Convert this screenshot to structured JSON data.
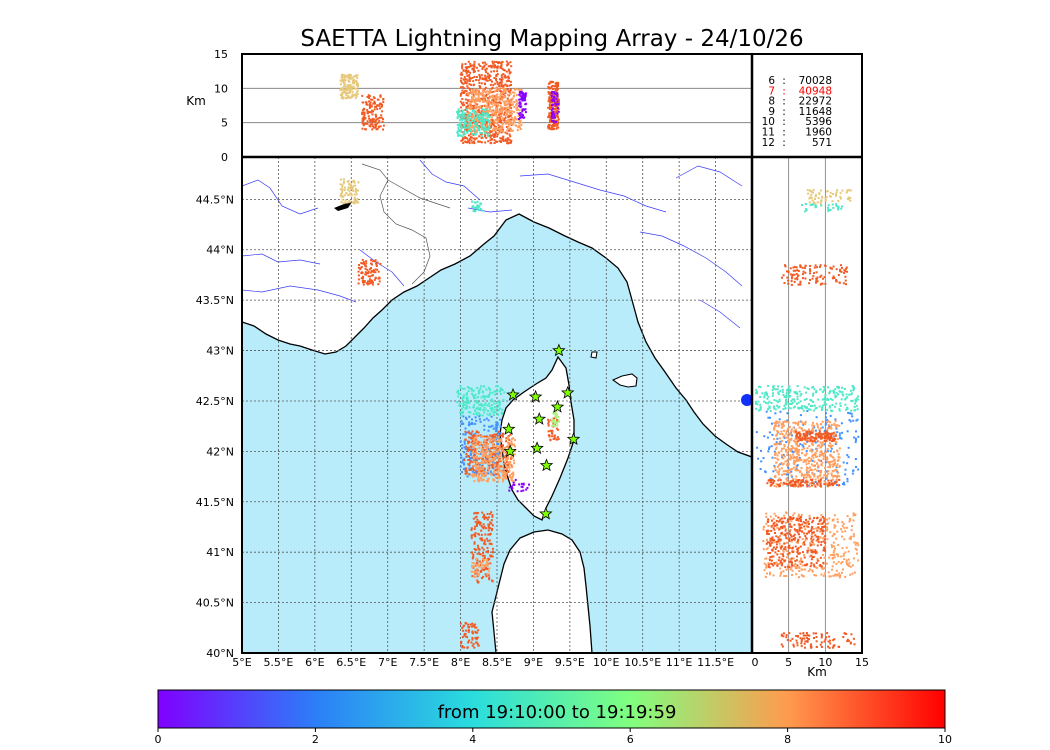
{
  "title": "SAETTA Lightning Mapping Array - 24/10/26",
  "colors": {
    "sea": "#b8ecfa",
    "land": "#ffffff",
    "coast": "#000000",
    "rivers": "#3a3aff",
    "borders": "#555555",
    "grid": "#555555",
    "station": "#7fff00",
    "highlight": "#ff0000"
  },
  "chart_data": [
    {
      "type": "scatter",
      "panel": "altitude-vs-longitude",
      "ylabel": "Km",
      "xlim": [
        5.0,
        12.0
      ],
      "ylim": [
        0,
        15
      ],
      "yticks": [
        "0",
        "5",
        "10",
        "15"
      ],
      "grid_lines_y": [
        5,
        10
      ],
      "clusters": [
        {
          "lon": [
            6.35,
            6.6
          ],
          "alt": [
            8.5,
            12.0
          ],
          "color": "#e6c97a",
          "n": 150
        },
        {
          "lon": [
            6.65,
            6.95
          ],
          "alt": [
            4.0,
            9.0
          ],
          "color": "#f25a24",
          "n": 140
        },
        {
          "lon": [
            8.0,
            8.7
          ],
          "alt": [
            2.0,
            14.0
          ],
          "color": "#f25a24",
          "n": 700
        },
        {
          "lon": [
            8.1,
            8.85
          ],
          "alt": [
            3.5,
            10.0
          ],
          "color": "#ffa060",
          "n": 400
        },
        {
          "lon": [
            7.95,
            8.4
          ],
          "alt": [
            3.0,
            7.0
          ],
          "color": "#4de8c8",
          "n": 180
        },
        {
          "lon": [
            8.8,
            8.9
          ],
          "alt": [
            5.5,
            9.5
          ],
          "color": "#8800ff",
          "n": 60
        },
        {
          "lon": [
            9.2,
            9.35
          ],
          "alt": [
            4.0,
            11.0
          ],
          "color": "#f25a24",
          "n": 200
        },
        {
          "lon": [
            9.25,
            9.35
          ],
          "alt": [
            5.0,
            9.5
          ],
          "color": "#8800ff",
          "n": 50
        }
      ]
    },
    {
      "type": "table",
      "panel": "station-counts",
      "rows": [
        {
          "station": "6",
          "count": "70028",
          "highlight": false
        },
        {
          "station": "7",
          "count": "40948",
          "highlight": true
        },
        {
          "station": "8",
          "count": "22972",
          "highlight": false
        },
        {
          "station": "9",
          "count": "11648",
          "highlight": false
        },
        {
          "station": "10",
          "count": "5396",
          "highlight": false
        },
        {
          "station": "11",
          "count": "1960",
          "highlight": false
        },
        {
          "station": "12",
          "count": "571",
          "highlight": false
        }
      ]
    },
    {
      "type": "scatter",
      "panel": "plan-view-map",
      "xlim": [
        5.0,
        12.0
      ],
      "ylim": [
        40.0,
        44.92
      ],
      "xticks": [
        "5°E",
        "5.5°E",
        "6°E",
        "6.5°E",
        "7°E",
        "7.5°E",
        "8°E",
        "8.5°E",
        "9°E",
        "9.5°E",
        "10°E",
        "10.5°E",
        "11°E",
        "11.5°E"
      ],
      "yticks": [
        "40°N",
        "40.5°N",
        "41°N",
        "41.5°N",
        "42°N",
        "42.5°N",
        "43°N",
        "43.5°N",
        "44°N",
        "44.5°N"
      ],
      "stations": [
        {
          "lon": 9.35,
          "lat": 43.0
        },
        {
          "lon": 8.72,
          "lat": 42.56
        },
        {
          "lon": 9.03,
          "lat": 42.54
        },
        {
          "lon": 9.47,
          "lat": 42.58
        },
        {
          "lon": 9.33,
          "lat": 42.44
        },
        {
          "lon": 9.08,
          "lat": 42.32
        },
        {
          "lon": 8.66,
          "lat": 42.22
        },
        {
          "lon": 9.55,
          "lat": 42.12
        },
        {
          "lon": 8.68,
          "lat": 42.0
        },
        {
          "lon": 9.05,
          "lat": 42.03
        },
        {
          "lon": 9.18,
          "lat": 41.86
        },
        {
          "lon": 9.17,
          "lat": 41.38
        }
      ],
      "clusters": [
        {
          "lon": [
            6.35,
            6.6
          ],
          "lat": [
            44.45,
            44.7
          ],
          "color": "#e6c97a",
          "n": 80
        },
        {
          "lon": [
            8.15,
            8.3
          ],
          "lat": [
            44.38,
            44.48
          ],
          "color": "#4de8c8",
          "n": 25
        },
        {
          "lon": [
            6.6,
            6.9
          ],
          "lat": [
            43.65,
            43.9
          ],
          "color": "#f25a24",
          "n": 90
        },
        {
          "lon": [
            7.95,
            8.6
          ],
          "lat": [
            42.35,
            42.65
          ],
          "color": "#4de8c8",
          "n": 180
        },
        {
          "lon": [
            8.0,
            8.55
          ],
          "lat": [
            41.75,
            42.35
          ],
          "color": "#4090ff",
          "n": 180
        },
        {
          "lon": [
            8.05,
            8.7
          ],
          "lat": [
            41.75,
            42.2
          ],
          "color": "#f25a24",
          "n": 250
        },
        {
          "lon": [
            8.15,
            8.75
          ],
          "lat": [
            41.7,
            42.15
          ],
          "color": "#ffa060",
          "n": 300
        },
        {
          "lon": [
            8.65,
            8.95
          ],
          "lat": [
            41.6,
            41.72
          ],
          "color": "#8800ff",
          "n": 20
        },
        {
          "lon": [
            9.2,
            9.35
          ],
          "lat": [
            42.1,
            42.35
          ],
          "color": "#f25a24",
          "n": 40
        },
        {
          "lon": [
            9.25,
            9.35
          ],
          "lat": [
            42.25,
            42.4
          ],
          "color": "#b0f080",
          "n": 30
        },
        {
          "lon": [
            8.15,
            8.45
          ],
          "lat": [
            40.7,
            41.4
          ],
          "color": "#f25a24",
          "n": 170
        },
        {
          "lon": [
            8.0,
            8.25
          ],
          "lat": [
            40.05,
            40.3
          ],
          "color": "#f25a24",
          "n": 60
        },
        {
          "lon": [
            8.15,
            8.4
          ],
          "lat": [
            40.75,
            40.95
          ],
          "color": "#ffa060",
          "n": 40
        }
      ]
    },
    {
      "type": "scatter",
      "panel": "latitude-vs-altitude",
      "xlabel": "Km",
      "xlim": [
        0,
        15
      ],
      "ylim": [
        40.0,
        44.92
      ],
      "xticks": [
        "0",
        "5",
        "10",
        "15"
      ],
      "grid_lines_x": [
        5,
        10
      ],
      "clusters": [
        {
          "alt": [
            7.5,
            13.5
          ],
          "lat": [
            44.45,
            44.6
          ],
          "color": "#e6c97a",
          "n": 60
        },
        {
          "alt": [
            6.5,
            12.5
          ],
          "lat": [
            44.38,
            44.46
          ],
          "color": "#4de8c8",
          "n": 30
        },
        {
          "alt": [
            4.0,
            13.0
          ],
          "lat": [
            43.65,
            43.85
          ],
          "color": "#f25a24",
          "n": 110
        },
        {
          "alt": [
            0.5,
            14.5
          ],
          "lat": [
            42.4,
            42.65
          ],
          "color": "#4de8c8",
          "n": 250
        },
        {
          "alt": [
            0.5,
            14.5
          ],
          "lat": [
            41.65,
            42.4
          ],
          "color": "#4090ff",
          "n": 180
        },
        {
          "alt": [
            3.0,
            12.0
          ],
          "lat": [
            41.65,
            42.3
          ],
          "color": "#ffa060",
          "n": 550
        },
        {
          "alt": [
            6.0,
            11.5
          ],
          "lat": [
            42.1,
            42.2
          ],
          "color": "#f25a24",
          "n": 120
        },
        {
          "alt": [
            2.0,
            12.0
          ],
          "lat": [
            41.65,
            41.72
          ],
          "color": "#f25a24",
          "n": 90
        },
        {
          "alt": [
            1.5,
            14.5
          ],
          "lat": [
            40.75,
            41.4
          ],
          "color": "#ffa060",
          "n": 350
        },
        {
          "alt": [
            2.0,
            10.0
          ],
          "lat": [
            40.85,
            41.35
          ],
          "color": "#f25a24",
          "n": 300
        },
        {
          "alt": [
            4.0,
            14.0
          ],
          "lat": [
            40.05,
            40.2
          ],
          "color": "#f25a24",
          "n": 90
        }
      ]
    },
    {
      "type": "heatmap",
      "panel": "time-colorbar",
      "label": "from 19:10:00 to 19:19:59",
      "range": [
        0,
        10
      ],
      "ticks": [
        "0",
        "2",
        "4",
        "6",
        "8",
        "10"
      ],
      "colormap": "rainbow"
    }
  ]
}
